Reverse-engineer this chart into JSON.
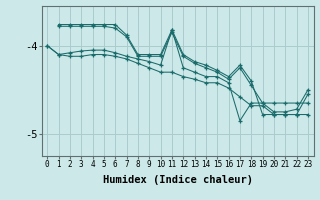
{
  "xlabel": "Humidex (Indice chaleur)",
  "bg_color": "#cce8e8",
  "grid_color": "#aacccc",
  "line_color": "#1a6b6b",
  "xlim": [
    -0.5,
    23.5
  ],
  "ylim": [
    -5.25,
    -3.55
  ],
  "yticks": [
    -5,
    -4
  ],
  "xticks": [
    0,
    1,
    2,
    3,
    4,
    5,
    6,
    7,
    8,
    9,
    10,
    11,
    12,
    13,
    14,
    15,
    16,
    17,
    18,
    19,
    20,
    21,
    22,
    23
  ],
  "lines": [
    {
      "x": [
        1,
        2,
        3,
        4,
        5,
        6,
        7,
        8,
        9,
        10,
        11,
        12,
        13,
        14,
        15,
        16,
        17,
        18,
        19,
        20,
        21,
        22,
        23
      ],
      "y": [
        -3.76,
        -3.76,
        -3.76,
        -3.76,
        -3.76,
        -3.76,
        -3.88,
        -4.1,
        -4.1,
        -4.1,
        -3.82,
        -4.1,
        -4.18,
        -4.22,
        -4.28,
        -4.35,
        -4.22,
        -4.4,
        -4.78,
        -4.78,
        -4.78,
        -4.78,
        -4.78
      ]
    },
    {
      "x": [
        1,
        2,
        3,
        4,
        5,
        6,
        7,
        8,
        9,
        10,
        11,
        12,
        13,
        14,
        15,
        16,
        17,
        18,
        19,
        20,
        21,
        22,
        23
      ],
      "y": [
        -3.78,
        -3.78,
        -3.78,
        -3.78,
        -3.78,
        -3.8,
        -3.9,
        -4.12,
        -4.12,
        -4.12,
        -3.85,
        -4.12,
        -4.2,
        -4.25,
        -4.3,
        -4.38,
        -4.25,
        -4.45,
        -4.65,
        -4.65,
        -4.65,
        -4.65,
        -4.65
      ]
    },
    {
      "x": [
        0,
        1,
        2,
        3,
        4,
        5,
        6,
        7,
        8,
        9,
        10,
        11,
        12,
        13,
        14,
        15,
        16,
        17,
        18,
        19,
        20,
        21,
        22,
        23
      ],
      "y": [
        -4.0,
        -4.1,
        -4.08,
        -4.06,
        -4.05,
        -4.05,
        -4.08,
        -4.12,
        -4.15,
        -4.18,
        -4.22,
        -3.82,
        -4.25,
        -4.3,
        -4.35,
        -4.35,
        -4.42,
        -4.85,
        -4.65,
        -4.65,
        -4.75,
        -4.75,
        -4.72,
        -4.5
      ]
    },
    {
      "x": [
        0,
        1,
        2,
        3,
        4,
        5,
        6,
        7,
        8,
        9,
        10,
        11,
        12,
        13,
        14,
        15,
        16,
        17,
        18,
        19,
        20,
        21,
        22,
        23
      ],
      "y": [
        -4.0,
        -4.1,
        -4.12,
        -4.12,
        -4.1,
        -4.1,
        -4.12,
        -4.15,
        -4.2,
        -4.25,
        -4.3,
        -4.3,
        -4.35,
        -4.38,
        -4.42,
        -4.42,
        -4.48,
        -4.58,
        -4.68,
        -4.68,
        -4.78,
        -4.78,
        -4.78,
        -4.55
      ]
    }
  ]
}
